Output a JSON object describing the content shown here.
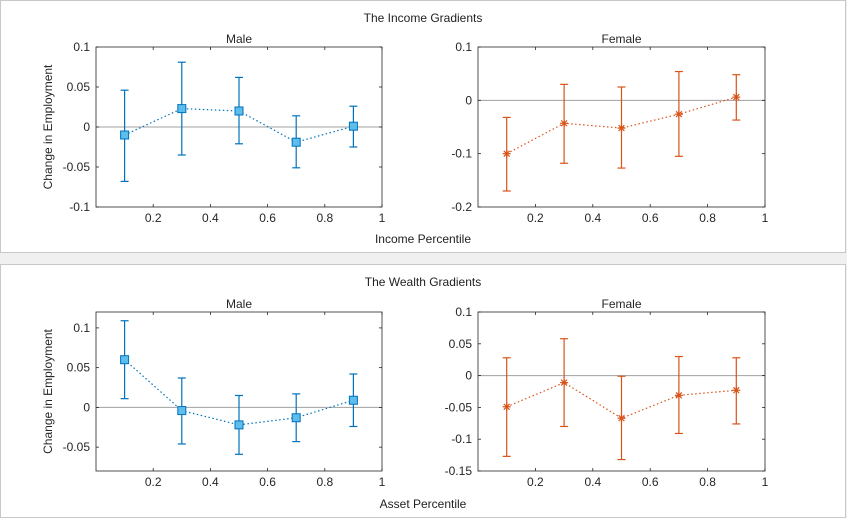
{
  "colors": {
    "male": "#0072BD",
    "male_fill": "#5DBDEB",
    "female": "#D95319",
    "axis": "#262626",
    "zero": "#a0a0a0"
  },
  "panels": [
    {
      "title": "The Income Gradients",
      "xlabel": "Income Percentile",
      "ylabel": "Change in Employment"
    },
    {
      "title": "The Wealth Gradients",
      "xlabel": "Asset Percentile",
      "ylabel": "Change in Employment"
    }
  ],
  "chart_data": [
    {
      "type": "line",
      "panel": 0,
      "title": "Male",
      "series_style": "male",
      "ylabel": "Change in Employment",
      "xlim": [
        0,
        1
      ],
      "ylim": [
        -0.1,
        0.1
      ],
      "xticks": [
        0.2,
        0.4,
        0.6,
        0.8,
        1
      ],
      "xtick_labels": [
        "0.2",
        "0.4",
        "0.6",
        "0.8",
        "1"
      ],
      "yticks": [
        -0.1,
        -0.05,
        0,
        0.05,
        0.1
      ],
      "ytick_labels": [
        "-0.1",
        "-0.05",
        "0",
        "0.05",
        "0.1"
      ],
      "x": [
        0.1,
        0.3,
        0.5,
        0.7,
        0.9
      ],
      "y": [
        -0.01,
        0.023,
        0.02,
        -0.019,
        0.001
      ],
      "lower": [
        -0.068,
        -0.035,
        -0.021,
        -0.051,
        -0.025
      ],
      "upper": [
        0.046,
        0.081,
        0.062,
        0.014,
        0.026
      ]
    },
    {
      "type": "line",
      "panel": 0,
      "title": "Female",
      "series_style": "female",
      "ylabel": "",
      "xlim": [
        0,
        1
      ],
      "ylim": [
        -0.2,
        0.1
      ],
      "xticks": [
        0.2,
        0.4,
        0.6,
        0.8,
        1
      ],
      "xtick_labels": [
        "0.2",
        "0.4",
        "0.6",
        "0.8",
        "1"
      ],
      "yticks": [
        -0.2,
        -0.1,
        0,
        0.1
      ],
      "ytick_labels": [
        "-0.2",
        "-0.1",
        "0",
        "0.1"
      ],
      "x": [
        0.1,
        0.3,
        0.5,
        0.7,
        0.9
      ],
      "y": [
        -0.1,
        -0.043,
        -0.052,
        -0.026,
        0.006
      ],
      "lower": [
        -0.17,
        -0.118,
        -0.127,
        -0.105,
        -0.037
      ],
      "upper": [
        -0.032,
        0.03,
        0.025,
        0.054,
        0.048
      ]
    },
    {
      "type": "line",
      "panel": 1,
      "title": "Male",
      "series_style": "male",
      "ylabel": "Change in Employment",
      "xlim": [
        0,
        1
      ],
      "ylim": [
        -0.08,
        0.12
      ],
      "xticks": [
        0.2,
        0.4,
        0.6,
        0.8,
        1
      ],
      "xtick_labels": [
        "0.2",
        "0.4",
        "0.6",
        "0.8",
        "1"
      ],
      "yticks": [
        -0.05,
        0,
        0.05,
        0.1
      ],
      "ytick_labels": [
        "-0.05",
        "0",
        "0.05",
        "0.1"
      ],
      "x": [
        0.1,
        0.3,
        0.5,
        0.7,
        0.9
      ],
      "y": [
        0.06,
        -0.004,
        -0.022,
        -0.013,
        0.009
      ],
      "lower": [
        0.011,
        -0.046,
        -0.059,
        -0.043,
        -0.024
      ],
      "upper": [
        0.109,
        0.037,
        0.015,
        0.017,
        0.042
      ]
    },
    {
      "type": "line",
      "panel": 1,
      "title": "Female",
      "series_style": "female",
      "ylabel": "",
      "xlim": [
        0,
        1
      ],
      "ylim": [
        -0.15,
        0.1
      ],
      "xticks": [
        0.2,
        0.4,
        0.6,
        0.8,
        1
      ],
      "xtick_labels": [
        "0.2",
        "0.4",
        "0.6",
        "0.8",
        "1"
      ],
      "yticks": [
        -0.15,
        -0.1,
        -0.05,
        0,
        0.05,
        0.1
      ],
      "ytick_labels": [
        "-0.15",
        "-0.1",
        "-0.05",
        "0",
        "0.05",
        "0.1"
      ],
      "x": [
        0.1,
        0.3,
        0.5,
        0.7,
        0.9
      ],
      "y": [
        -0.049,
        -0.011,
        -0.067,
        -0.031,
        -0.023
      ],
      "lower": [
        -0.127,
        -0.08,
        -0.132,
        -0.091,
        -0.076
      ],
      "upper": [
        0.028,
        0.058,
        -0.001,
        0.03,
        0.028
      ]
    }
  ]
}
